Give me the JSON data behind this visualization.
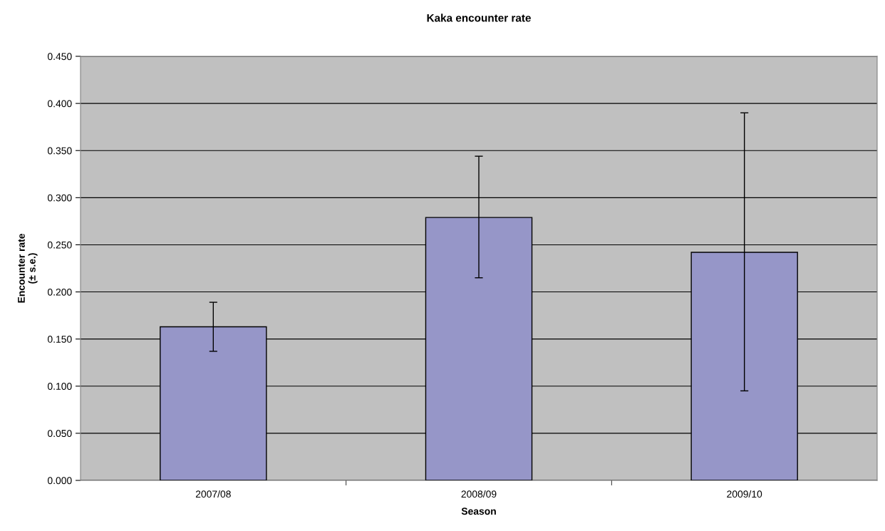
{
  "chart_data": {
    "type": "bar",
    "title": "Kaka encounter rate",
    "xlabel": "Season",
    "ylabel": "Encounter rate\n(± s.e.)",
    "categories": [
      "2007/08",
      "2008/09",
      "2009/10"
    ],
    "values": [
      0.163,
      0.279,
      0.242
    ],
    "errors": [
      [
        0.137,
        0.189
      ],
      [
        0.215,
        0.344
      ],
      [
        0.095,
        0.39
      ]
    ],
    "color": "#9696c8",
    "ylim": [
      0,
      0.45
    ],
    "yticks": [
      {
        "value": 0,
        "label": "0.000"
      },
      {
        "value": 0.05,
        "label": "0.050"
      },
      {
        "value": 0.1,
        "label": "0.100"
      },
      {
        "value": 0.15,
        "label": "0.150"
      },
      {
        "value": 0.2,
        "label": "0.200"
      },
      {
        "value": 0.25,
        "label": "0.250"
      },
      {
        "value": 0.3,
        "label": "0.300"
      },
      {
        "value": 0.35,
        "label": "0.350"
      },
      {
        "value": 0.4,
        "label": "0.400"
      },
      {
        "value": 0.45,
        "label": "0.450"
      }
    ],
    "grid": "y"
  }
}
